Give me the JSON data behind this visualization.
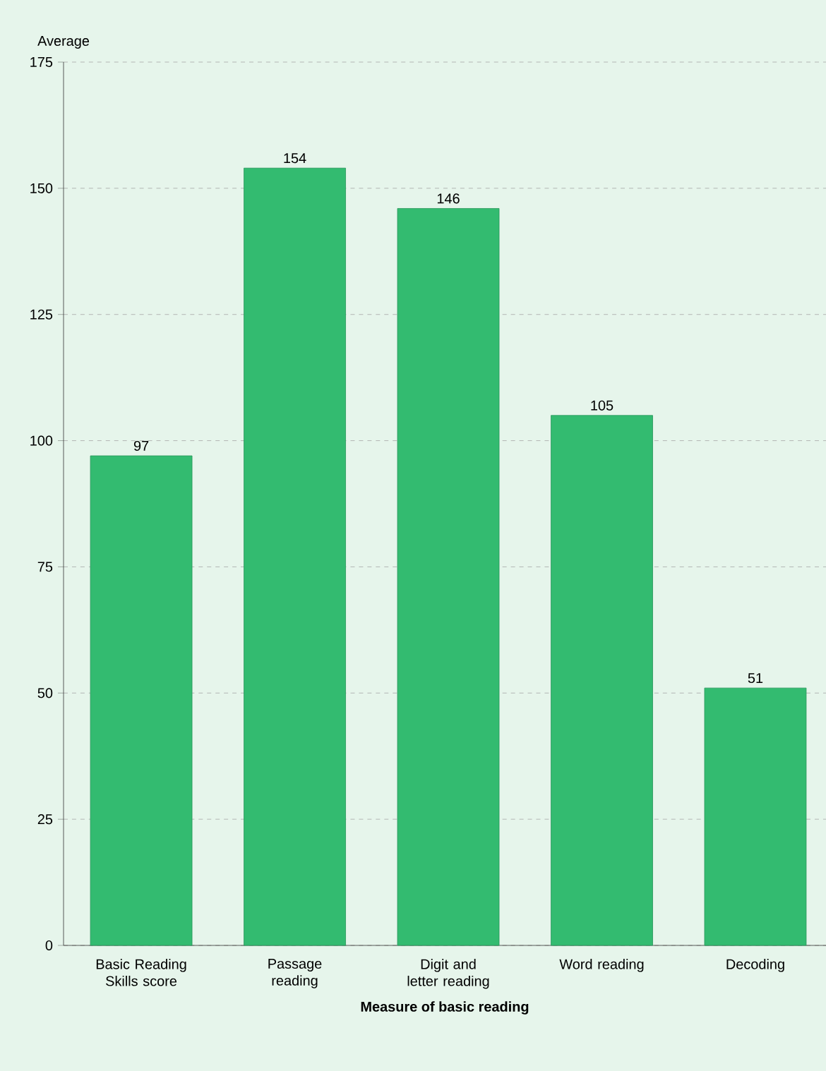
{
  "chart_data": {
    "type": "bar",
    "xlabel": "Measure of basic reading",
    "ylabel": "Average",
    "categories": [
      "Basic Reading Skills score",
      "Passage reading",
      "Digit and letter reading",
      "Word reading",
      "Decoding"
    ],
    "values": [
      97,
      154,
      146,
      105,
      51
    ],
    "color": "#33bb70",
    "ylim": [
      0,
      175
    ],
    "yticks": [
      0,
      25,
      50,
      75,
      100,
      125,
      150,
      175
    ],
    "grid": "y",
    "data_labels": true
  }
}
